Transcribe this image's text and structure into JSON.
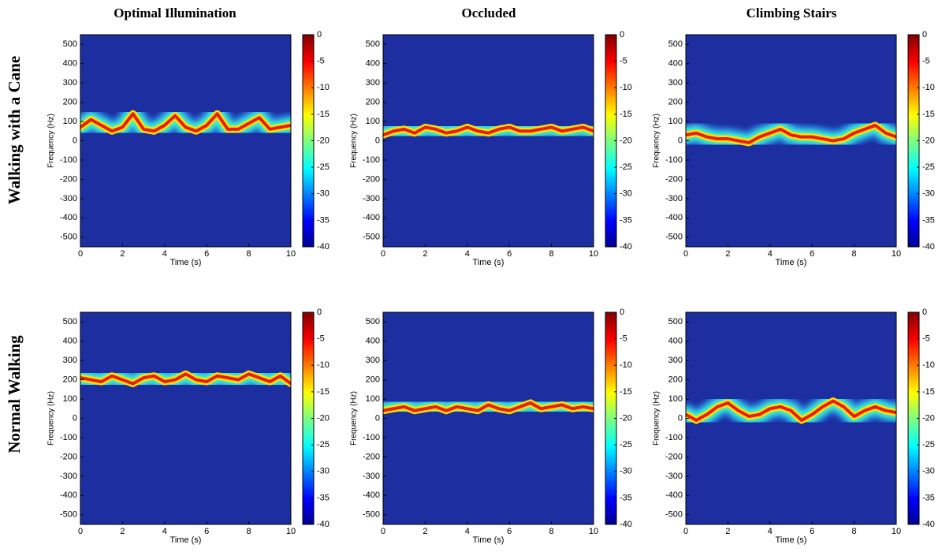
{
  "column_titles": [
    "Optimal Illumination",
    "Occluded",
    "Climbing Stairs"
  ],
  "row_labels": [
    "Walking with a Cane",
    "Normal Walking"
  ],
  "chart_data": [
    {
      "type": "spectrogram",
      "xlabel": "Time (s)",
      "ylabel": "Frequency (Hz)",
      "xlim": [
        0,
        10
      ],
      "ylim": [
        -550,
        550
      ],
      "xticks": [
        0,
        2,
        4,
        6,
        8,
        10
      ],
      "yticks": [
        -500,
        -400,
        -300,
        -200,
        -100,
        0,
        100,
        200,
        300,
        400,
        500
      ],
      "clim": [
        -40,
        0
      ],
      "cticks": [
        0,
        -5,
        -10,
        -15,
        -20,
        -25,
        -30,
        -35,
        -40
      ],
      "x": [
        0,
        0.5,
        1,
        1.5,
        2,
        2.5,
        3,
        3.5,
        4,
        4.5,
        5,
        5.5,
        6,
        6.5,
        7,
        7.5,
        8,
        8.5,
        9,
        9.5,
        10
      ],
      "values": [
        70,
        110,
        80,
        50,
        70,
        140,
        60,
        50,
        80,
        130,
        70,
        50,
        80,
        140,
        60,
        60,
        90,
        120,
        60,
        70,
        80
      ]
    },
    {
      "type": "spectrogram",
      "xlabel": "Time (s)",
      "ylabel": "Frequency (Hz)",
      "xlim": [
        0,
        10
      ],
      "ylim": [
        -550,
        550
      ],
      "xticks": [
        0,
        2,
        4,
        6,
        8,
        10
      ],
      "yticks": [
        -500,
        -400,
        -300,
        -200,
        -100,
        0,
        100,
        200,
        300,
        400,
        500
      ],
      "clim": [
        -40,
        0
      ],
      "cticks": [
        0,
        -5,
        -10,
        -15,
        -20,
        -25,
        -30,
        -35,
        -40
      ],
      "x": [
        0,
        0.5,
        1,
        1.5,
        2,
        2.5,
        3,
        3.5,
        4,
        4.5,
        5,
        5.5,
        6,
        6.5,
        7,
        7.5,
        8,
        8.5,
        9,
        9.5,
        10
      ],
      "values": [
        30,
        50,
        60,
        40,
        70,
        60,
        40,
        50,
        70,
        50,
        40,
        60,
        70,
        50,
        50,
        60,
        70,
        50,
        60,
        70,
        50
      ]
    },
    {
      "type": "spectrogram",
      "xlabel": "Time (s)",
      "ylabel": "Frequency (Hz)",
      "xlim": [
        0,
        10
      ],
      "ylim": [
        -550,
        550
      ],
      "xticks": [
        0,
        2,
        4,
        6,
        8,
        10
      ],
      "yticks": [
        -500,
        -400,
        -300,
        -200,
        -100,
        0,
        100,
        200,
        300,
        400,
        500
      ],
      "clim": [
        -40,
        0
      ],
      "cticks": [
        0,
        -5,
        -10,
        -15,
        -20,
        -25,
        -30,
        -35,
        -40
      ],
      "x": [
        0,
        0.5,
        1,
        1.5,
        2,
        2.5,
        3,
        3.5,
        4,
        4.5,
        5,
        5.5,
        6,
        6.5,
        7,
        7.5,
        8,
        8.5,
        9,
        9.5,
        10
      ],
      "values": [
        30,
        40,
        20,
        10,
        10,
        0,
        -10,
        20,
        40,
        60,
        30,
        20,
        20,
        10,
        0,
        10,
        40,
        60,
        80,
        40,
        20
      ]
    },
    {
      "type": "spectrogram",
      "xlabel": "Time (s)",
      "ylabel": "Frequency (Hz)",
      "xlim": [
        0,
        10
      ],
      "ylim": [
        -550,
        550
      ],
      "xticks": [
        0,
        2,
        4,
        6,
        8,
        10
      ],
      "yticks": [
        -500,
        -400,
        -300,
        -200,
        -100,
        0,
        100,
        200,
        300,
        400,
        500
      ],
      "clim": [
        -40,
        0
      ],
      "cticks": [
        0,
        -5,
        -10,
        -15,
        -20,
        -25,
        -30,
        -35,
        -40
      ],
      "x": [
        0,
        0.5,
        1,
        1.5,
        2,
        2.5,
        3,
        3.5,
        4,
        4.5,
        5,
        5.5,
        6,
        6.5,
        7,
        7.5,
        8,
        8.5,
        9,
        9.5,
        10
      ],
      "values": [
        210,
        200,
        190,
        220,
        200,
        180,
        210,
        220,
        190,
        200,
        230,
        200,
        190,
        220,
        210,
        200,
        230,
        210,
        190,
        220,
        180
      ]
    },
    {
      "type": "spectrogram",
      "xlabel": "Time (s)",
      "ylabel": "Frequency (Hz)",
      "xlim": [
        0,
        10
      ],
      "ylim": [
        -550,
        550
      ],
      "xticks": [
        0,
        2,
        4,
        6,
        8,
        10
      ],
      "yticks": [
        -500,
        -400,
        -300,
        -200,
        -100,
        0,
        100,
        200,
        300,
        400,
        500
      ],
      "clim": [
        -40,
        0
      ],
      "cticks": [
        0,
        -5,
        -10,
        -15,
        -20,
        -25,
        -30,
        -35,
        -40
      ],
      "x": [
        0,
        0.5,
        1,
        1.5,
        2,
        2.5,
        3,
        3.5,
        4,
        4.5,
        5,
        5.5,
        6,
        6.5,
        7,
        7.5,
        8,
        8.5,
        9,
        9.5,
        10
      ],
      "values": [
        40,
        50,
        60,
        40,
        50,
        60,
        40,
        60,
        50,
        40,
        70,
        50,
        40,
        60,
        80,
        50,
        60,
        70,
        50,
        60,
        50
      ]
    },
    {
      "type": "spectrogram",
      "xlabel": "Time (s)",
      "ylabel": "Frequency (Hz)",
      "xlim": [
        0,
        10
      ],
      "ylim": [
        -550,
        550
      ],
      "xticks": [
        0,
        2,
        4,
        6,
        8,
        10
      ],
      "yticks": [
        -500,
        -400,
        -300,
        -200,
        -100,
        0,
        100,
        200,
        300,
        400,
        500
      ],
      "clim": [
        -40,
        0
      ],
      "cticks": [
        0,
        -5,
        -10,
        -15,
        -20,
        -25,
        -30,
        -35,
        -40
      ],
      "x": [
        0,
        0.5,
        1,
        1.5,
        2,
        2.5,
        3,
        3.5,
        4,
        4.5,
        5,
        5.5,
        6,
        6.5,
        7,
        7.5,
        8,
        8.5,
        9,
        9.5,
        10
      ],
      "values": [
        20,
        -10,
        20,
        60,
        80,
        40,
        10,
        20,
        50,
        60,
        40,
        -10,
        20,
        60,
        90,
        60,
        10,
        40,
        60,
        40,
        30
      ]
    }
  ]
}
